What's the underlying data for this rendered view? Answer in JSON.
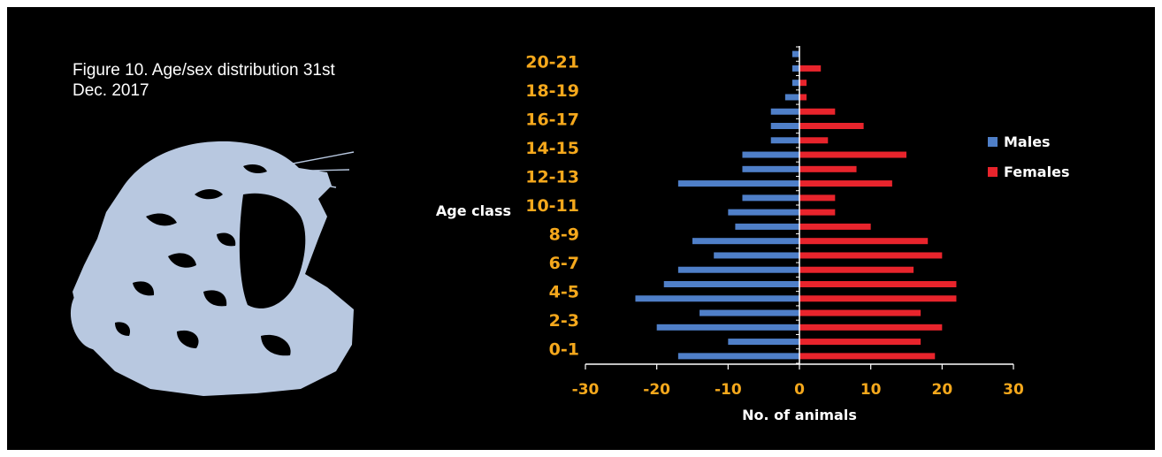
{
  "figure": {
    "title_line1": "Figure 10. Age/sex distribution 31st",
    "title_line2": "Dec.  2017"
  },
  "image": {
    "icon": "roaring-lion-silhouette",
    "color": "#b8c8e0"
  },
  "chart_data": {
    "type": "bar",
    "orientation": "horizontal",
    "categories": [
      "0",
      "1",
      "2",
      "3",
      "4",
      "5",
      "6",
      "7",
      "8",
      "9",
      "10",
      "11",
      "12",
      "13",
      "14",
      "15",
      "16",
      "17",
      "18",
      "19",
      "20",
      "21"
    ],
    "tick_labels": [
      "0-1",
      "2-3",
      "4-5",
      "6-7",
      "8-9",
      "10-11",
      "12-13",
      "14-15",
      "16-17",
      "18-19",
      "20-21"
    ],
    "series": [
      {
        "name": "Males",
        "color": "#4f7fc8",
        "values": [
          -17,
          -10,
          -20,
          -14,
          -23,
          -19,
          -17,
          -12,
          -15,
          -9,
          -10,
          -8,
          -17,
          -8,
          -8,
          -4,
          -4,
          -4,
          -2,
          -1,
          -1,
          -1
        ]
      },
      {
        "name": "Females",
        "color": "#e8242c",
        "values": [
          19,
          17,
          20,
          17,
          22,
          22,
          16,
          20,
          18,
          10,
          5,
          5,
          13,
          8,
          15,
          4,
          9,
          5,
          1,
          1,
          3,
          0
        ]
      }
    ],
    "xlabel": "No. of  animals",
    "ylabel": "Age class",
    "xlim": [
      -30,
      30
    ],
    "xticks": [
      "-30",
      "-20",
      "-10",
      "0",
      "10",
      "20",
      "30"
    ],
    "tick_color": "#f5a81c",
    "grid": false,
    "legend_position": "right"
  }
}
